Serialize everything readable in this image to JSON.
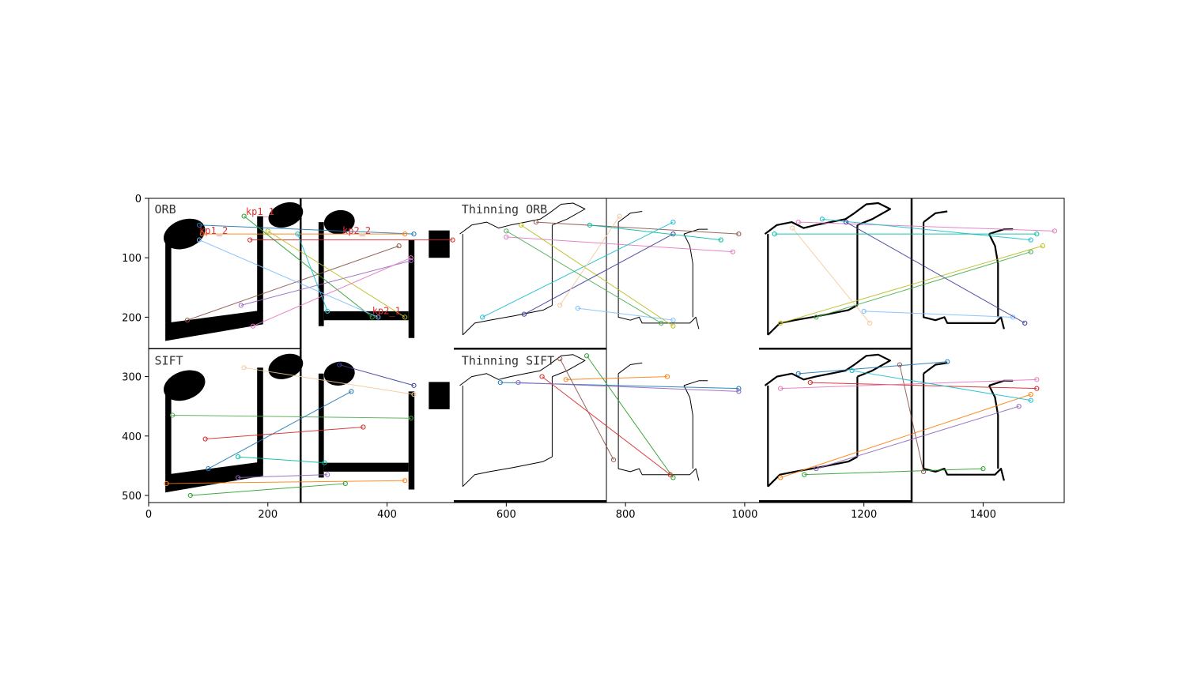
{
  "chart_data": {
    "type": "image",
    "xlim": [
      0,
      1536
    ],
    "ylim": [
      512,
      0
    ],
    "xticks": [
      0,
      200,
      400,
      600,
      800,
      1000,
      1200,
      1400
    ],
    "yticks": [
      0,
      100,
      200,
      300,
      400,
      500
    ],
    "panel_labels": [
      "ORB",
      "SIFT",
      "Thinning ORB",
      "Thinning SIFT"
    ],
    "keypoint_labels": [
      "kp1_1",
      "kp1_2",
      "kp2_2",
      "kp2_1"
    ]
  },
  "colors": {
    "ink": "#000000",
    "frame": "#000000",
    "kp_label": "#e53030"
  }
}
